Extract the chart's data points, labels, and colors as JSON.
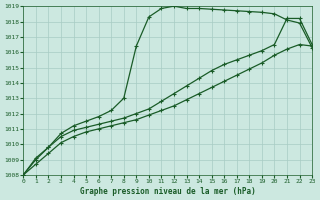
{
  "title": "Graphe pression niveau de la mer (hPa)",
  "xlim": [
    0,
    23
  ],
  "ylim": [
    1008,
    1019
  ],
  "yticks": [
    1008,
    1009,
    1010,
    1011,
    1012,
    1013,
    1014,
    1015,
    1016,
    1017,
    1018,
    1019
  ],
  "xticks": [
    0,
    1,
    2,
    3,
    4,
    5,
    6,
    7,
    8,
    9,
    10,
    11,
    12,
    13,
    14,
    15,
    16,
    17,
    18,
    19,
    20,
    21,
    22,
    23
  ],
  "bg_color": "#cce8e0",
  "grid_color": "#a8ccc4",
  "line_color": "#1a5c28",
  "line1_y": [
    1008.0,
    1009.1,
    1009.8,
    1010.7,
    1011.2,
    1011.5,
    1011.8,
    1012.2,
    1013.0,
    1016.4,
    1018.3,
    1018.85,
    1019.0,
    1018.85,
    1018.85,
    1018.8,
    1018.75,
    1018.7,
    1018.65,
    1018.6,
    1018.5,
    1018.1,
    1017.9,
    1016.3
  ],
  "line2_y": [
    1008.0,
    1009.0,
    1009.8,
    1010.5,
    1010.9,
    1011.1,
    1011.3,
    1011.5,
    1011.7,
    1012.0,
    1012.3,
    1012.8,
    1013.3,
    1013.8,
    1014.3,
    1014.8,
    1015.2,
    1015.5,
    1015.8,
    1016.1,
    1016.5,
    1018.2,
    1018.2,
    1016.5
  ],
  "line3_y": [
    1008.0,
    1008.7,
    1009.4,
    1010.1,
    1010.5,
    1010.8,
    1011.0,
    1011.2,
    1011.4,
    1011.6,
    1011.9,
    1012.2,
    1012.5,
    1012.9,
    1013.3,
    1013.7,
    1014.1,
    1014.5,
    1014.9,
    1015.3,
    1015.8,
    1016.2,
    1016.5,
    1016.4
  ],
  "marker": "+",
  "marker_size": 3.5,
  "linewidth": 0.9
}
